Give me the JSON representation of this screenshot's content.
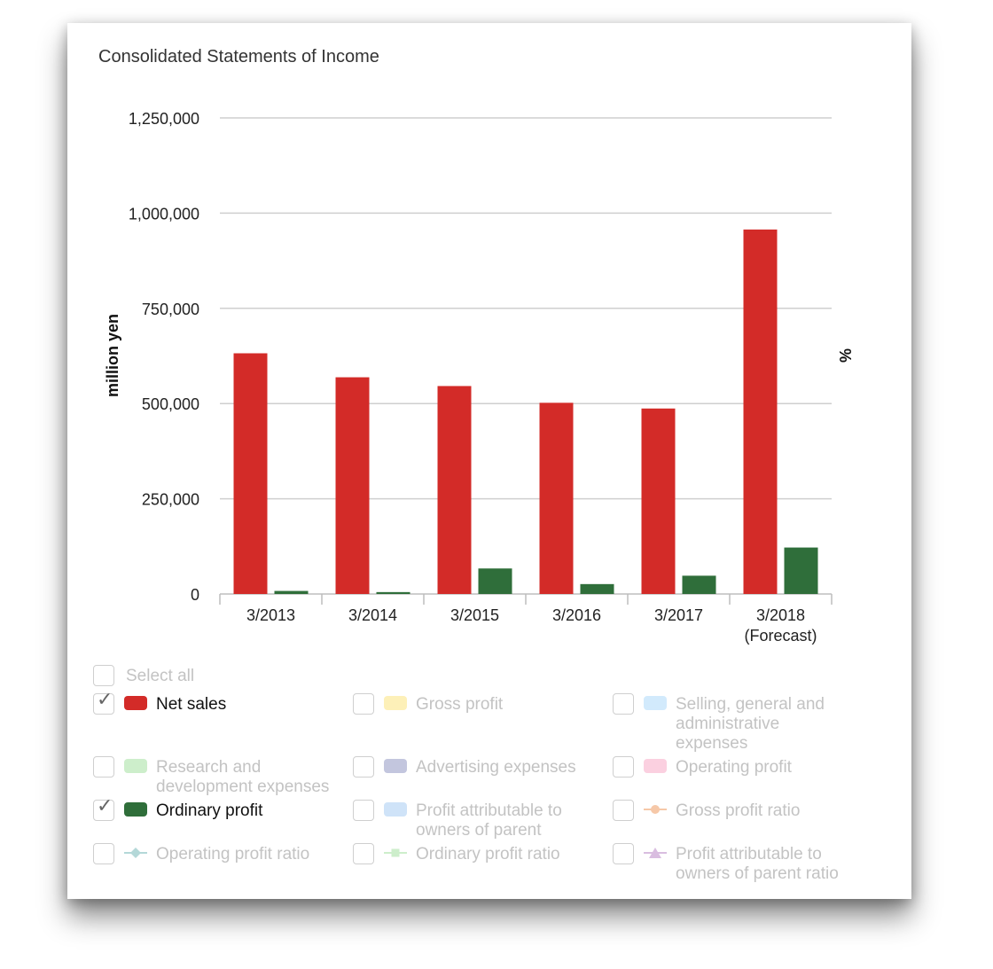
{
  "title": "Consolidated Statements of Income",
  "chart_data": {
    "type": "bar",
    "title": "Consolidated Statements of Income",
    "ylabel": "million yen",
    "y2label": "%",
    "ylim": [
      0,
      1250000
    ],
    "yticks": [
      0,
      250000,
      500000,
      750000,
      1000000,
      1250000
    ],
    "ytick_labels": [
      "0",
      "250,000",
      "500,000",
      "750,000",
      "1,000,000",
      "1,250,000"
    ],
    "categories": [
      [
        "3/2013"
      ],
      [
        "3/2014"
      ],
      [
        "3/2015"
      ],
      [
        "3/2016"
      ],
      [
        "3/2017"
      ],
      [
        "3/2018",
        "(Forecast)"
      ]
    ],
    "series": [
      {
        "name": "Net sales",
        "color": "#d32b28",
        "values": [
          632000,
          569000,
          546000,
          502000,
          487000,
          957000
        ]
      },
      {
        "name": "Ordinary profit",
        "color": "#2f6e3a",
        "values": [
          8000,
          5000,
          67000,
          26000,
          48000,
          122000
        ]
      }
    ],
    "grid": true
  },
  "legend": {
    "select_all": "Select all",
    "items": [
      {
        "lines": [
          "Net sales"
        ],
        "checked": true,
        "color": "#d32b28",
        "kind": "bar"
      },
      {
        "lines": [
          "Gross profit"
        ],
        "checked": false,
        "color": "#fdf0b8",
        "kind": "bar"
      },
      {
        "lines": [
          "Selling, general and",
          "administrative",
          "expenses"
        ],
        "checked": false,
        "color": "#d2eafc",
        "kind": "bar"
      },
      {
        "lines": [
          "Research and",
          "development expenses"
        ],
        "checked": false,
        "color": "#cdeecb",
        "kind": "bar"
      },
      {
        "lines": [
          "Advertising expenses"
        ],
        "checked": false,
        "color": "#c3c6de",
        "kind": "bar"
      },
      {
        "lines": [
          "Operating profit"
        ],
        "checked": false,
        "color": "#fbd0e0",
        "kind": "bar"
      },
      {
        "lines": [
          "Ordinary profit"
        ],
        "checked": true,
        "color": "#2f6e3a",
        "kind": "bar"
      },
      {
        "lines": [
          "Profit attributable to",
          "owners of parent"
        ],
        "checked": false,
        "color": "#cfe3f8",
        "kind": "bar"
      },
      {
        "lines": [
          "Gross profit ratio"
        ],
        "checked": false,
        "color": "#f6c8a8",
        "kind": "circle"
      },
      {
        "lines": [
          "Operating profit ratio"
        ],
        "checked": false,
        "color": "#b4d8d8",
        "kind": "diamond"
      },
      {
        "lines": [
          "Ordinary profit ratio"
        ],
        "checked": false,
        "color": "#cdeecb",
        "kind": "square"
      },
      {
        "lines": [
          "Profit attributable to",
          "owners of parent ratio"
        ],
        "checked": false,
        "color": "#d9bde0",
        "kind": "triangle"
      }
    ]
  }
}
